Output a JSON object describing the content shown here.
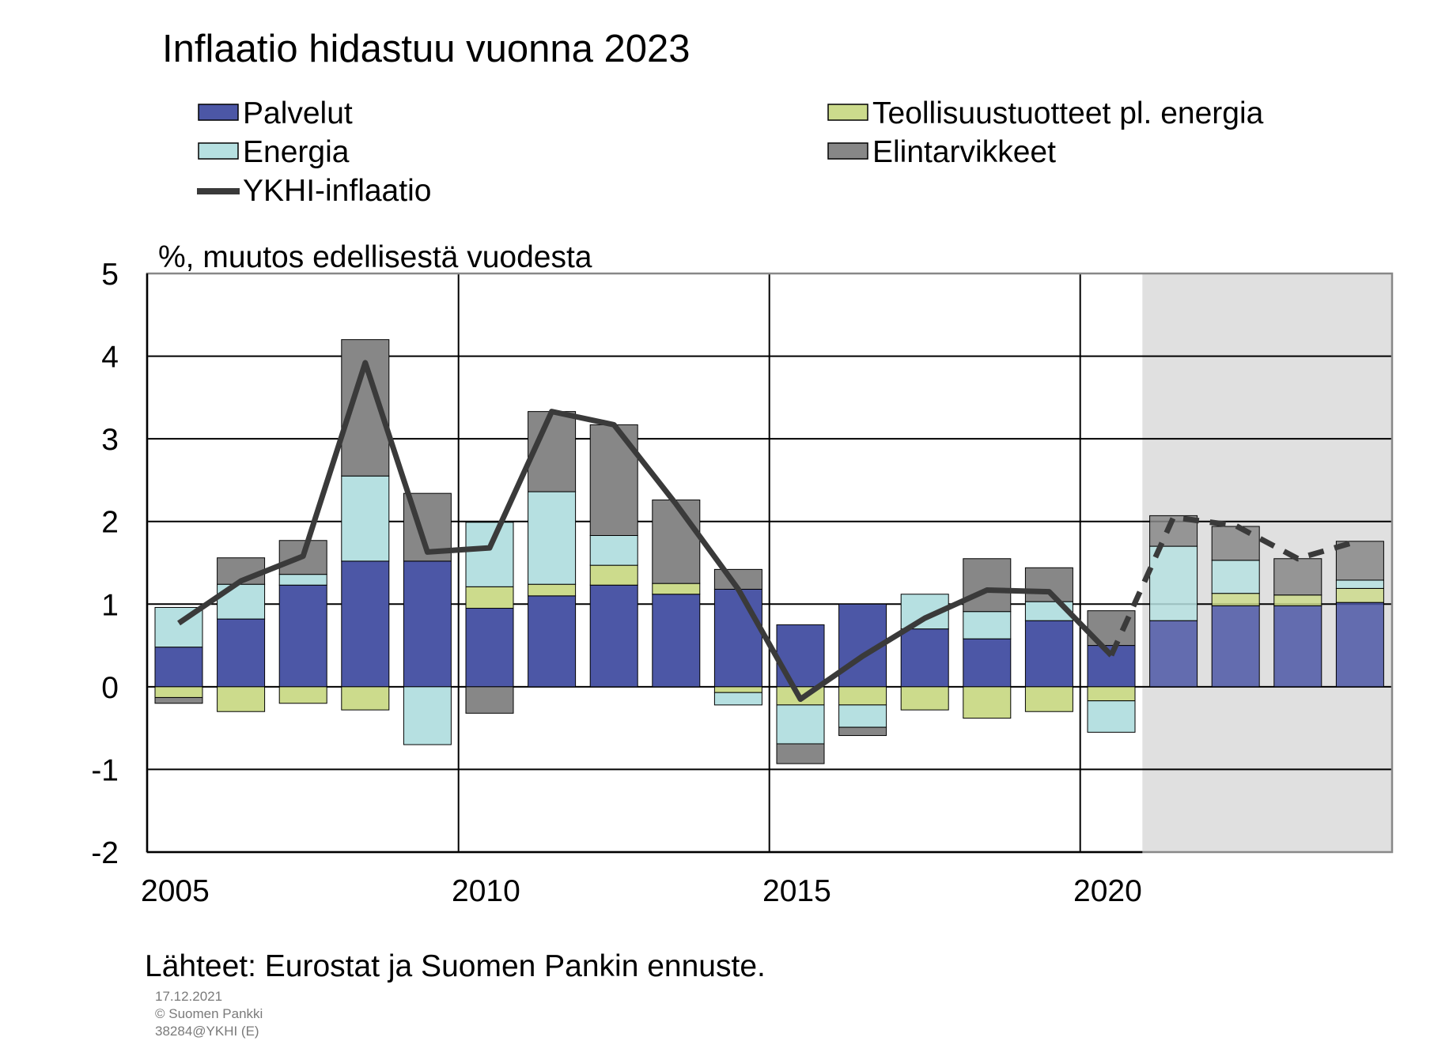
{
  "chart_data": {
    "type": "bar",
    "title": "Inflaatio hidastuu vuonna 2023",
    "ylabel": "%, muutos edellisestä vuodesta",
    "xlabel": "",
    "ylim": [
      -2,
      5
    ],
    "yticks": [
      "5",
      "4",
      "3",
      "2",
      "1",
      "0",
      "-1",
      "-2"
    ],
    "ytick_values": [
      5,
      4,
      3,
      2,
      1,
      0,
      -1,
      -2
    ],
    "xticks": [
      "2005",
      "2010",
      "2015",
      "2020"
    ],
    "xtick_values": [
      2005,
      2010,
      2015,
      2020
    ],
    "grid": true,
    "legend_position": "top",
    "forecast_shaded_from": 2021,
    "years": [
      2005,
      2006,
      2007,
      2008,
      2009,
      2010,
      2011,
      2012,
      2013,
      2014,
      2015,
      2016,
      2017,
      2018,
      2019,
      2020,
      2021,
      2022,
      2023,
      2024
    ],
    "series": [
      {
        "name": "Palvelut",
        "color": "#4c57a6",
        "values": [
          0.48,
          0.82,
          1.23,
          1.52,
          1.52,
          0.95,
          1.1,
          1.23,
          1.12,
          1.18,
          0.75,
          1.0,
          0.7,
          0.58,
          0.8,
          0.5,
          0.8,
          0.98,
          0.98,
          1.02
        ]
      },
      {
        "name": "Teollisuustuotteet pl. energia",
        "color": "#ccdb8c",
        "values": [
          -0.13,
          -0.3,
          -0.2,
          -0.28,
          0.0,
          0.26,
          0.14,
          0.24,
          0.13,
          -0.07,
          -0.22,
          -0.22,
          -0.28,
          -0.38,
          -0.3,
          -0.17,
          0.0,
          0.15,
          0.13,
          0.17
        ]
      },
      {
        "name": "Energia",
        "color": "#b6e0e1",
        "values": [
          0.48,
          0.42,
          0.13,
          1.03,
          -0.7,
          0.78,
          1.12,
          0.36,
          0.0,
          -0.15,
          -0.47,
          -0.27,
          0.42,
          0.33,
          0.23,
          -0.38,
          0.9,
          0.4,
          0.0,
          0.1
        ]
      },
      {
        "name": "Elintarvikkeet",
        "color": "#878787",
        "values": [
          -0.07,
          0.32,
          0.41,
          1.65,
          0.82,
          -0.32,
          0.97,
          1.34,
          1.01,
          0.24,
          -0.24,
          -0.1,
          0.0,
          0.64,
          0.41,
          0.42,
          0.37,
          0.41,
          0.44,
          0.47
        ]
      }
    ],
    "line": {
      "name": "YKHI-inflaatio",
      "color": "#3a3a3a",
      "values": [
        0.77,
        1.28,
        1.58,
        3.92,
        1.63,
        1.68,
        3.33,
        3.17,
        2.21,
        1.18,
        -0.15,
        0.37,
        0.83,
        1.17,
        1.15,
        0.38,
        2.05,
        1.95,
        1.55,
        1.77
      ],
      "dashed_from_year": 2020
    }
  },
  "footer": {
    "source": "Lähteet: Eurostat ja Suomen Pankin ennuste.",
    "date": "17.12.2021",
    "copyright": "© Suomen Pankki",
    "code": "38284@YKHI (E)"
  }
}
